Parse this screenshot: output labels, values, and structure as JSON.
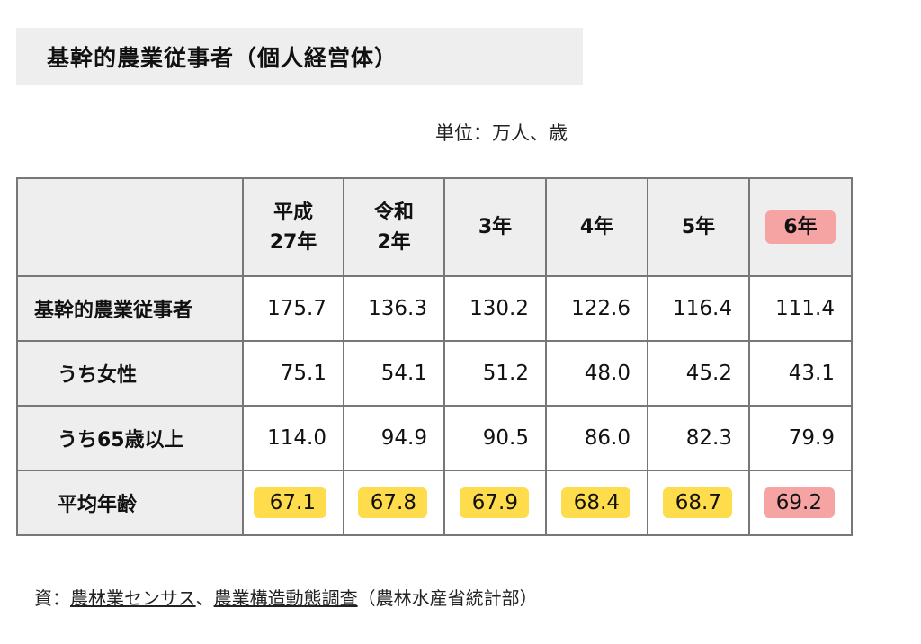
{
  "title": "基幹的農業従事者（個人経営体）",
  "unit": "単位：万人、歳",
  "table": {
    "headers": [
      {
        "line1": "平成",
        "line2": "27年"
      },
      {
        "line1": "令和",
        "line2": "2年"
      },
      {
        "line1": "3年",
        "line2": ""
      },
      {
        "line1": "4年",
        "line2": ""
      },
      {
        "line1": "5年",
        "line2": ""
      },
      {
        "line1": "6年",
        "line2": ""
      }
    ],
    "rows": [
      {
        "label": "基幹的農業従事者",
        "values": [
          "175.7",
          "136.3",
          "130.2",
          "122.6",
          "116.4",
          "111.4"
        ]
      },
      {
        "label": "うち女性",
        "values": [
          "75.1",
          "54.1",
          "51.2",
          "48.0",
          "45.2",
          "43.1"
        ]
      },
      {
        "label": "うち65歳以上",
        "values": [
          "114.0",
          "94.9",
          "90.5",
          "86.0",
          "82.3",
          "79.9"
        ]
      },
      {
        "label": "平均年齢",
        "values": [
          "67.1",
          "67.8",
          "67.9",
          "68.4",
          "68.7",
          "69.2"
        ]
      }
    ]
  },
  "highlight_colors": {
    "yellow": "#fedc4b",
    "red": "#f5a3a3"
  },
  "source": {
    "prefix": "資：",
    "link1": "農林業センサス",
    "sep": "、",
    "link2": "農業構造動態調査",
    "suffix": "（農林水産省統計部）"
  }
}
